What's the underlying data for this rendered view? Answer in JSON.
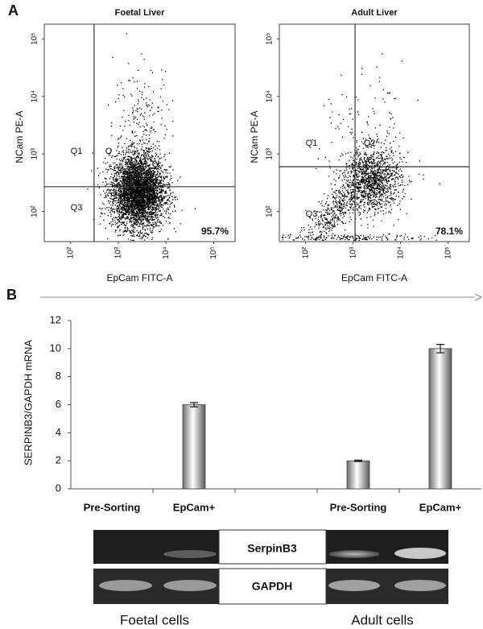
{
  "panel_labels": [
    "A",
    "B"
  ],
  "chart_data": [
    {
      "type": "flow",
      "title": "Foetal Liver",
      "xlabel": "EpCam FITC-A",
      "ylabel": "NCam PE-A",
      "log": true,
      "xlim": [
        28,
        280000
      ],
      "ylim": [
        30,
        180000
      ],
      "xticks": [
        {
          "value": 100,
          "label": "10²"
        },
        {
          "value": 1000,
          "label": "10³"
        },
        {
          "value": 10000,
          "label": "10⁴"
        },
        {
          "value": 100000,
          "label": "10⁵"
        }
      ],
      "yticks": [
        {
          "value": 100,
          "label": "10²"
        },
        {
          "value": 1000,
          "label": "10³"
        },
        {
          "value": 10000,
          "label": "10⁴"
        },
        {
          "value": 100000,
          "label": "10⁵"
        }
      ],
      "gate": {
        "x": 310,
        "y": 270
      },
      "quadrant_labels": [
        "Q1",
        "Q",
        "Q3"
      ],
      "quadrant_percent": {
        "value": 95.7,
        "label": "95.7%"
      }
    },
    {
      "type": "flow",
      "title": "Adult Liver",
      "xlabel": "EpCam FITC-A",
      "ylabel": "NCam PE-A",
      "log": true,
      "xlim": [
        28,
        280000
      ],
      "ylim": [
        30,
        180000
      ],
      "xticks": [
        {
          "value": 100,
          "label": "10²"
        },
        {
          "value": 1000,
          "label": "10³"
        },
        {
          "value": 10000,
          "label": "10⁴"
        },
        {
          "value": 100000,
          "label": "10⁵"
        }
      ],
      "yticks": [
        {
          "value": 100,
          "label": "10²"
        },
        {
          "value": 1000,
          "label": "10³"
        },
        {
          "value": 10000,
          "label": "10⁴"
        },
        {
          "value": 100000,
          "label": "10⁵"
        }
      ],
      "gate": {
        "x": 1100,
        "y": 600
      },
      "quadrant_labels": [
        "Q1",
        "Q2",
        "Q3"
      ],
      "quadrant_percent": {
        "value": 78.1,
        "label": "78.1%"
      }
    },
    {
      "type": "bar",
      "ylabel": "SERPINB3/GAPDH mRNA",
      "categories": [
        "Pre-Sorting",
        "EpCam+",
        null,
        "Pre-Sorting",
        "EpCam+"
      ],
      "values": [
        0,
        6,
        null,
        2,
        10
      ],
      "errors": [
        0,
        0.15,
        null,
        0.05,
        0.3
      ],
      "color": "#b8b8b8",
      "ylim": [
        0,
        12
      ],
      "yticks": [
        0,
        2,
        4,
        6,
        8,
        10,
        12
      ]
    }
  ],
  "gel": {
    "bands": [
      "SerpinB3",
      "GAPDH"
    ],
    "groups": [
      "Foetal cells",
      "Adult cells"
    ]
  }
}
